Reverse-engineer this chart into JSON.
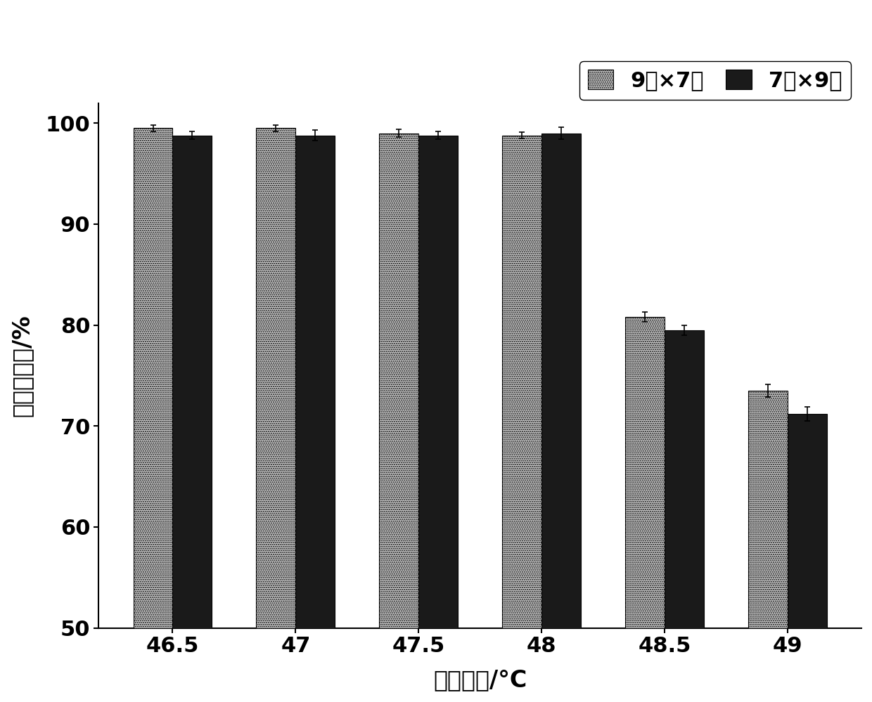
{
  "categories": [
    "46.5",
    "47",
    "47.5",
    "48",
    "48.5",
    "49"
  ],
  "series1_label": "9芤×7湘",
  "series2_label": "7湘×9芤",
  "series1_values": [
    99.5,
    99.5,
    99.0,
    98.8,
    80.8,
    73.5
  ],
  "series2_values": [
    98.8,
    98.8,
    98.8,
    99.0,
    79.5,
    71.2
  ],
  "series1_errors": [
    0.3,
    0.3,
    0.4,
    0.3,
    0.5,
    0.6
  ],
  "series2_errors": [
    0.4,
    0.5,
    0.4,
    0.6,
    0.5,
    0.7
  ],
  "bar_width": 0.32,
  "ylim": [
    50,
    102
  ],
  "yticks": [
    50,
    60,
    70,
    80,
    90,
    100
  ],
  "xlabel": "浸酸温度/°C",
  "ylabel": "实用孵化率/%",
  "background_color": "#ffffff",
  "axis_fontsize": 24,
  "tick_fontsize": 22,
  "legend_fontsize": 22
}
